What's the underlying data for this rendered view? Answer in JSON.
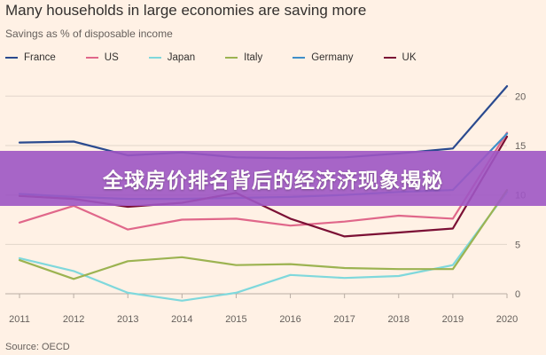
{
  "chart_data": {
    "type": "line",
    "title": "Many households in large economies are saving more",
    "subtitle": "Savings as % of disposable income",
    "source": "Source: OECD",
    "x": [
      2011,
      2012,
      2013,
      2014,
      2015,
      2016,
      2017,
      2018,
      2019,
      2020
    ],
    "xlim": [
      2011,
      2020
    ],
    "ylim": [
      0,
      22
    ],
    "yticks": [
      0,
      5,
      10,
      15,
      20
    ],
    "grid": true,
    "legend_position": "top",
    "series": [
      {
        "name": "France",
        "color": "#2a4a8f",
        "values": [
          15.3,
          15.4,
          14.0,
          14.3,
          13.8,
          13.7,
          13.8,
          14.2,
          14.7,
          21.0
        ]
      },
      {
        "name": "US",
        "color": "#e0678a",
        "values": [
          7.2,
          8.9,
          6.5,
          7.5,
          7.6,
          6.9,
          7.3,
          7.9,
          7.6,
          16.3
        ]
      },
      {
        "name": "Japan",
        "color": "#7fd8dc",
        "values": [
          3.6,
          2.3,
          0.1,
          -0.7,
          0.1,
          1.9,
          1.6,
          1.8,
          2.9,
          10.3
        ]
      },
      {
        "name": "Italy",
        "color": "#9cb351",
        "values": [
          3.4,
          1.5,
          3.3,
          3.7,
          2.9,
          3.0,
          2.6,
          2.5,
          2.5,
          10.5
        ]
      },
      {
        "name": "Germany",
        "color": "#3f8fc9",
        "values": [
          10.1,
          9.8,
          9.6,
          9.6,
          9.7,
          9.8,
          10.0,
          10.3,
          10.5,
          16.2
        ]
      },
      {
        "name": "UK",
        "color": "#7b1035",
        "values": [
          9.9,
          9.6,
          8.8,
          9.2,
          10.2,
          7.6,
          5.8,
          6.2,
          6.6,
          15.9
        ]
      }
    ]
  },
  "overlay": {
    "banner_text": "全球房价排名背后的经济济现象揭秘",
    "banner_color": "#9e56c4"
  }
}
